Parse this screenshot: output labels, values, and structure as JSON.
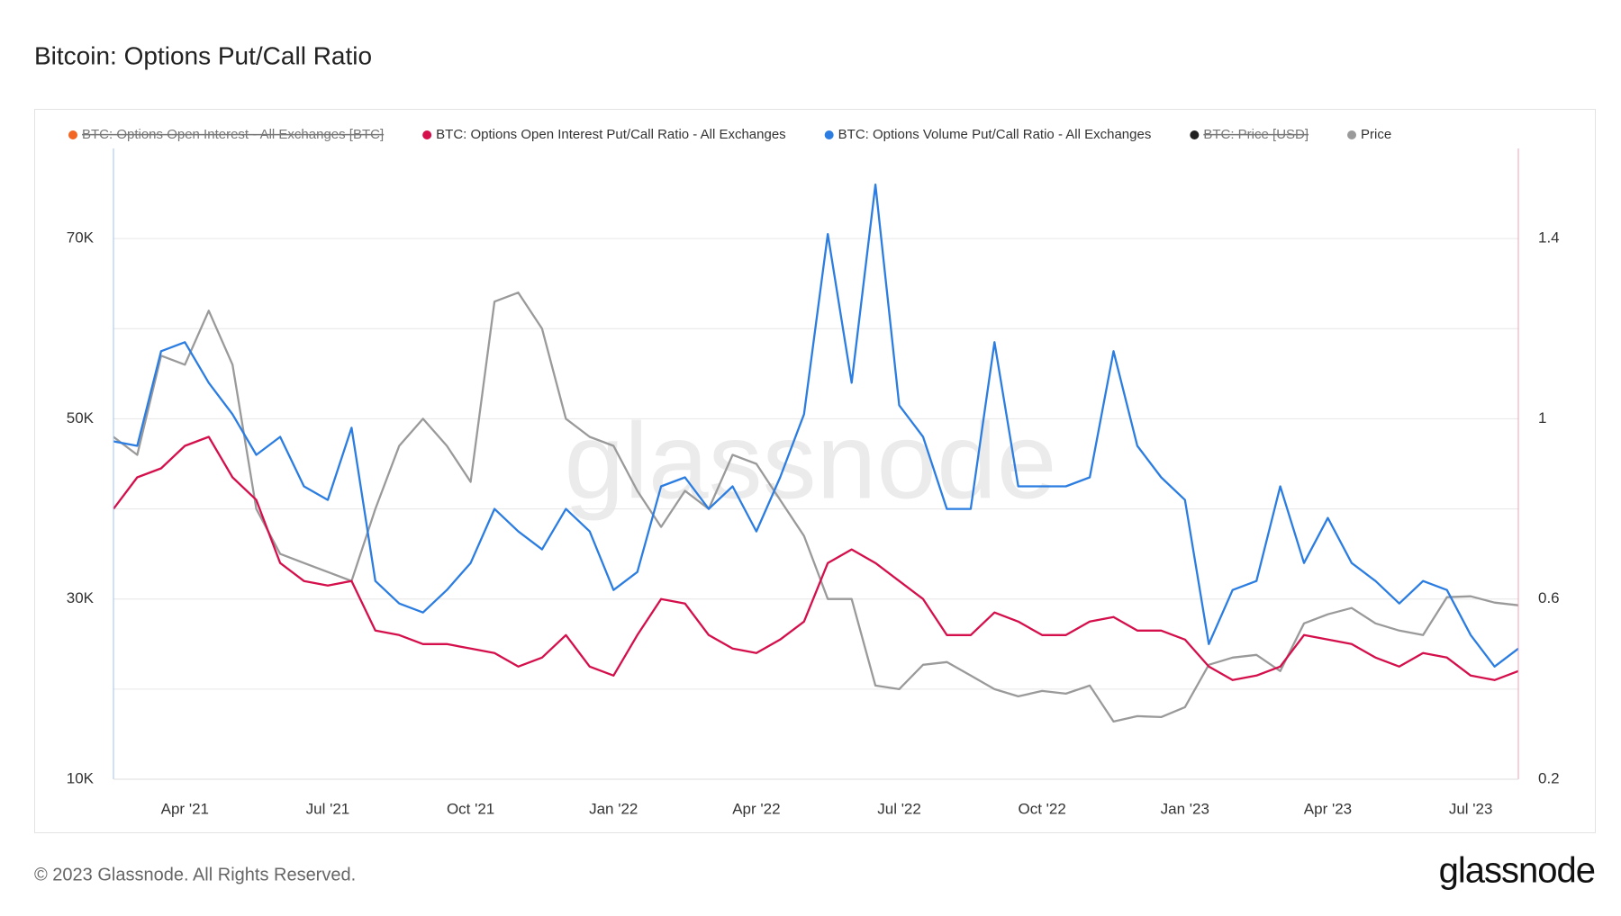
{
  "chart_data": {
    "type": "line",
    "title": "Bitcoin: Options Put/Call Ratio",
    "watermark": "glassnode",
    "footer": "© 2023 Glassnode. All Rights Reserved.",
    "logo": "glassnode",
    "categories": [
      null,
      null,
      null,
      "Apr '21",
      null,
      null,
      null,
      null,
      null,
      "Jul '21",
      null,
      null,
      null,
      null,
      null,
      "Oct '21",
      null,
      null,
      null,
      null,
      null,
      "Jan '22",
      null,
      null,
      null,
      null,
      null,
      "Apr '22",
      null,
      null,
      null,
      null,
      null,
      "Jul '22",
      null,
      null,
      null,
      null,
      null,
      "Oct '22",
      null,
      null,
      null,
      null,
      null,
      "Jan '23",
      null,
      null,
      null,
      null,
      null,
      "Apr '23",
      null,
      null,
      null,
      null,
      null,
      "Jul '23",
      null,
      null
    ],
    "ylim": [
      10000,
      80000
    ],
    "yticks": [
      {
        "value": 10000,
        "label": "10K"
      },
      {
        "value": 30000,
        "label": "30K"
      },
      {
        "value": 50000,
        "label": "50K"
      },
      {
        "value": 70000,
        "label": "70K"
      }
    ],
    "yminor": [
      20000,
      40000,
      60000
    ],
    "y2lim": [
      0.2,
      1.6
    ],
    "y2ticks": [
      0.2,
      0.6,
      1,
      1.4
    ],
    "grid": true,
    "legend": "top",
    "series": [
      {
        "name": "BTC: Options Open Interest - All Exchanges [BTC]",
        "color": "#f26522",
        "hidden": true
      },
      {
        "name": "BTC: Options Open Interest Put/Call Ratio - All Exchanges",
        "color": "#d40f4b",
        "axis": "y2",
        "values": [
          0.8,
          0.87,
          0.89,
          0.94,
          0.96,
          0.87,
          0.82,
          0.68,
          0.64,
          0.63,
          0.64,
          0.53,
          0.52,
          0.5,
          0.5,
          0.49,
          0.48,
          0.45,
          0.47,
          0.52,
          0.45,
          0.43,
          0.52,
          0.6,
          0.59,
          0.52,
          0.49,
          0.48,
          0.51,
          0.55,
          0.68,
          0.71,
          0.68,
          0.64,
          0.6,
          0.52,
          0.52,
          0.57,
          0.55,
          0.52,
          0.52,
          0.55,
          0.56,
          0.53,
          0.53,
          0.51,
          0.45,
          0.42,
          0.43,
          0.45,
          0.52,
          0.51,
          0.5,
          0.47,
          0.45,
          0.48,
          0.47,
          0.43,
          0.42,
          0.44
        ]
      },
      {
        "name": "BTC: Options Volume Put/Call Ratio - All Exchanges",
        "color": "#2b7de1",
        "axis": "y2",
        "values": [
          0.95,
          0.94,
          1.15,
          1.17,
          1.08,
          1.01,
          0.92,
          0.96,
          0.85,
          0.82,
          0.98,
          0.64,
          0.59,
          0.57,
          0.62,
          0.68,
          0.8,
          0.75,
          0.71,
          0.8,
          0.75,
          0.62,
          0.66,
          0.85,
          0.87,
          0.8,
          0.85,
          0.75,
          0.87,
          1.01,
          1.41,
          1.08,
          1.52,
          1.03,
          0.96,
          0.8,
          0.8,
          1.17,
          0.85,
          0.85,
          0.85,
          0.87,
          1.15,
          0.94,
          0.87,
          0.82,
          0.5,
          0.62,
          0.64,
          0.85,
          0.68,
          0.78,
          0.68,
          0.64,
          0.59,
          0.64,
          0.62,
          0.52,
          0.45,
          0.49
        ]
      },
      {
        "name": "BTC: Price [USD]",
        "color": "#222222",
        "hidden": true
      },
      {
        "name": "Price",
        "color": "#9a9a9a",
        "axis": "y",
        "values": [
          48000,
          46000,
          57000,
          56000,
          62000,
          56000,
          40000,
          35000,
          34000,
          33000,
          32000,
          40000,
          47000,
          50000,
          47000,
          43000,
          63000,
          64000,
          60000,
          50000,
          48000,
          47000,
          42000,
          38000,
          42000,
          40000,
          46000,
          45000,
          41000,
          37000,
          30000,
          30000,
          20400,
          20000,
          22700,
          23000,
          21500,
          20000,
          19200,
          19800,
          19500,
          20400,
          16400,
          17000,
          16900,
          18000,
          22700,
          23500,
          23800,
          22000,
          27300,
          28300,
          29000,
          27300,
          26500,
          26000,
          30200,
          30300,
          29600,
          29300
        ]
      }
    ]
  }
}
